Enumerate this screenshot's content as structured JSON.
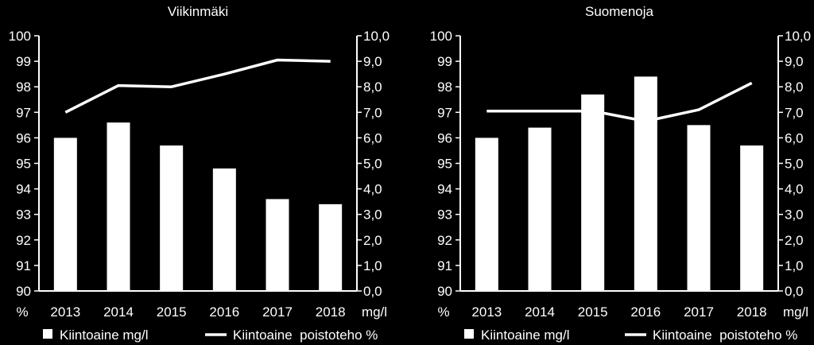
{
  "chart_data": [
    {
      "type": "bar+line",
      "title": "Viikinmäki",
      "categories": [
        "2013",
        "2014",
        "2015",
        "2016",
        "2017",
        "2018"
      ],
      "left_axis": {
        "unit_label": "%",
        "ticks": [
          "100",
          "99",
          "98",
          "97",
          "96",
          "95",
          "94",
          "93",
          "92",
          "91",
          "90"
        ],
        "ylim": [
          90,
          100
        ]
      },
      "right_axis": {
        "unit_label": "mg/l",
        "ticks": [
          "10,0",
          "9,0",
          "8,0",
          "7,0",
          "6,0",
          "5,0",
          "4,0",
          "3,0",
          "2,0",
          "1,0",
          "0,0"
        ],
        "ylim": [
          0,
          10
        ]
      },
      "series": [
        {
          "name": "Kiintoaine mg/l",
          "kind": "bar",
          "axis": "right",
          "values": [
            6.0,
            6.6,
            5.7,
            4.8,
            3.6,
            3.4
          ]
        },
        {
          "name": "Kiintoaine  poistoteho %",
          "kind": "line",
          "axis": "left",
          "values": [
            97.0,
            98.05,
            98.0,
            98.5,
            99.05,
            99.0
          ]
        }
      ],
      "legend_position": "bottom",
      "grid": false
    },
    {
      "type": "bar+line",
      "title": "Suomenoja",
      "categories": [
        "2013",
        "2014",
        "2015",
        "2016",
        "2017",
        "2018"
      ],
      "left_axis": {
        "unit_label": "%",
        "ticks": [
          "100",
          "99",
          "98",
          "97",
          "96",
          "95",
          "94",
          "93",
          "92",
          "91",
          "90"
        ],
        "ylim": [
          90,
          100
        ]
      },
      "right_axis": {
        "unit_label": "mg/l",
        "ticks": [
          "10,0",
          "9,0",
          "8,0",
          "7,0",
          "6,0",
          "5,0",
          "4,0",
          "3,0",
          "2,0",
          "1,0",
          "0,0"
        ],
        "ylim": [
          0,
          10
        ]
      },
      "series": [
        {
          "name": "Kiintoaine mg/l",
          "kind": "bar",
          "axis": "right",
          "values": [
            6.0,
            6.4,
            7.7,
            8.4,
            6.5,
            5.7
          ]
        },
        {
          "name": "Kiintoaine  poistoteho %",
          "kind": "line",
          "axis": "left",
          "values": [
            97.05,
            97.05,
            97.05,
            96.65,
            97.1,
            98.15
          ]
        }
      ],
      "legend_position": "bottom",
      "grid": false
    }
  ],
  "colors": {
    "background": "#000000",
    "foreground": "#ffffff"
  }
}
